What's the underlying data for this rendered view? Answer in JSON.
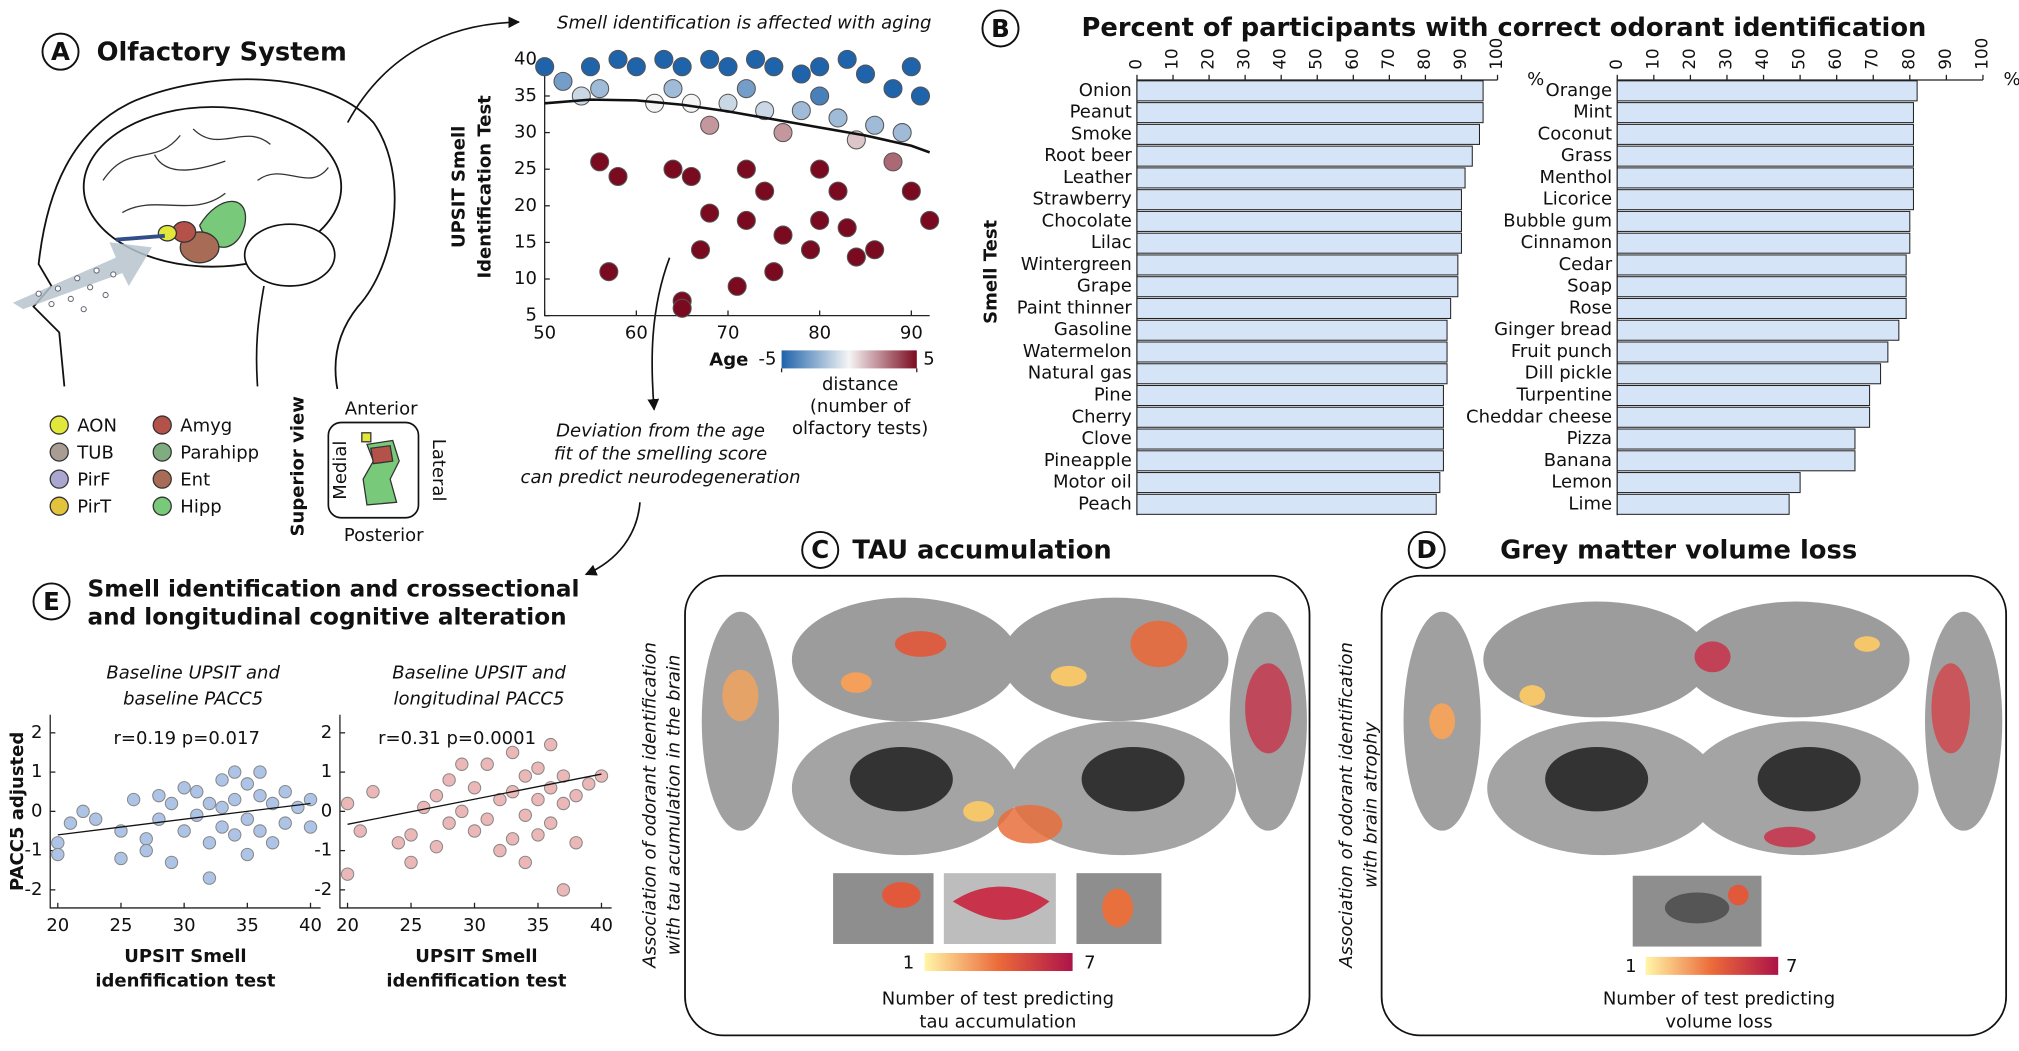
{
  "panels": {
    "A": {
      "letter": "A",
      "title": "Olfactory System",
      "legend": [
        {
          "name": "AON",
          "color": "#e2e83a"
        },
        {
          "name": "TUB",
          "color": "#a99c92"
        },
        {
          "name": "PirF",
          "color": "#a9a7d0"
        },
        {
          "name": "PirT",
          "color": "#e3c33b"
        },
        {
          "name": "Amyg",
          "color": "#b4524a"
        },
        {
          "name": "Parahipp",
          "color": "#80ad7f"
        },
        {
          "name": "Ent",
          "color": "#a76b56"
        },
        {
          "name": "Hipp",
          "color": "#79c97b"
        }
      ],
      "superior_view": {
        "title": "Superior view",
        "anterior": "Anterior",
        "posterior": "Posterior",
        "medial": "Medial",
        "lateral": "Lateral"
      }
    },
    "B": {
      "letter": "B"
    },
    "C": {
      "letter": "C",
      "title": "TAU accumulation",
      "side_label": [
        "Association of odorant identification",
        "with tau acumulation in the brain"
      ],
      "colorbar": {
        "min": 1,
        "max": 7,
        "label": [
          "Number of test predicting",
          "tau accumulation"
        ]
      }
    },
    "D": {
      "letter": "D",
      "title": "Grey matter volume loss",
      "side_label": [
        "Association of odorant identification",
        "with brain atrophy"
      ],
      "colorbar": {
        "min": 1,
        "max": 7,
        "label": [
          "Number of test predicting",
          "volume loss"
        ]
      }
    },
    "E": {
      "letter": "E",
      "title": [
        "Smell identification  and crossectional",
        "and longitudinal cognitive alteration"
      ]
    }
  },
  "chart_data": [
    {
      "type": "scatter",
      "title": "Smell identification is affected with aging",
      "x_label": "Age",
      "y_label": [
        "UPSIT Smell",
        "Identification Test"
      ],
      "annotation": [
        "Deviation from the age",
        "fit of the smelling score",
        "can predict neurodegeneration"
      ],
      "xlim": [
        50,
        92
      ],
      "ylim": [
        5,
        40
      ],
      "xticks": [
        50,
        60,
        70,
        80,
        90
      ],
      "yticks": [
        5,
        10,
        15,
        20,
        25,
        30,
        35,
        40
      ],
      "x": [
        50,
        52,
        55,
        58,
        60,
        63,
        65,
        68,
        70,
        73,
        75,
        78,
        80,
        83,
        85,
        88,
        90,
        91,
        56,
        64,
        72,
        80,
        54,
        62,
        66,
        70,
        74,
        78,
        82,
        86,
        89,
        68,
        76,
        84,
        56,
        64,
        72,
        80,
        88,
        58,
        66,
        74,
        82,
        90,
        92,
        68,
        72,
        76,
        80,
        84,
        86,
        67,
        71,
        75,
        79,
        83,
        57,
        65,
        65
      ],
      "y": [
        39,
        37,
        39,
        40,
        39,
        40,
        39,
        40,
        39,
        40,
        39,
        38,
        39,
        40,
        38,
        36,
        39,
        35,
        36,
        36,
        36,
        35,
        35,
        34,
        34,
        34,
        33,
        33,
        32,
        31,
        30,
        31,
        30,
        29,
        26,
        25,
        25,
        25,
        26,
        24,
        24,
        22,
        22,
        22,
        18,
        19,
        18,
        16,
        18,
        13,
        14,
        14,
        9,
        11,
        14,
        17,
        11,
        7,
        6
      ],
      "distance": [
        -5,
        -3,
        -5,
        -6,
        -5,
        -6,
        -5,
        -7,
        -6,
        -8,
        -7,
        -7,
        -8,
        -10,
        -8,
        -7,
        -11,
        -7,
        -2,
        -2,
        -3,
        -4,
        -1,
        0,
        0,
        -1,
        -1,
        -2,
        -2,
        -2,
        -2,
        2,
        2,
        1,
        8,
        9,
        8,
        6,
        3,
        10,
        10,
        10,
        9,
        6,
        9,
        14,
        15,
        16,
        13,
        17,
        15,
        20,
        24,
        21,
        17,
        13,
        23,
        27,
        28
      ],
      "fit": {
        "x": [
          50,
          55,
          60,
          65,
          70,
          75,
          80,
          85,
          90,
          92
        ],
        "y": [
          34,
          34.5,
          34.4,
          33.8,
          32.9,
          31.8,
          30.7,
          29.6,
          28.2,
          27.3
        ]
      },
      "colorbar": {
        "clim": [
          -5,
          5
        ],
        "ticks": [
          -5,
          5
        ],
        "colormap": [
          "#1f63ab",
          "#f5f5f5",
          "#7a0a1f"
        ],
        "label": [
          "distance",
          "(number of",
          "olfactory tests)"
        ]
      }
    },
    {
      "type": "bar",
      "orientation": "horizontal",
      "title": "Percent of participants with correct odorant identification",
      "y_label": "Smell Test",
      "x_label": "%",
      "color": "#d6e4f8",
      "xlim": [
        0,
        100
      ],
      "xticks": [
        0,
        10,
        20,
        30,
        40,
        50,
        60,
        70,
        80,
        90,
        100
      ],
      "categories": [
        "Onion",
        "Peanut",
        "Smoke",
        "Root beer",
        "Leather",
        "Strawberry",
        "Chocolate",
        "Lilac",
        "Wintergreen",
        "Grape",
        "Paint thinner",
        "Gasoline",
        "Watermelon",
        "Natural gas",
        "Pine",
        "Cherry",
        "Clove",
        "Pineapple",
        "Motor oil",
        "Peach"
      ],
      "values": [
        96,
        96,
        95,
        93,
        91,
        90,
        90,
        90,
        89,
        89,
        87,
        86,
        86,
        86,
        85,
        85,
        85,
        85,
        84,
        83
      ]
    },
    {
      "type": "bar",
      "orientation": "horizontal",
      "x_label": "%",
      "color": "#d6e4f8",
      "xlim": [
        0,
        100
      ],
      "xticks": [
        0,
        10,
        20,
        30,
        40,
        50,
        60,
        70,
        80,
        90,
        100
      ],
      "categories": [
        "Orange",
        "Mint",
        "Coconut",
        "Grass",
        "Menthol",
        "Licorice",
        "Bubble gum",
        "Cinnamon",
        "Cedar",
        "Soap",
        "Rose",
        "Ginger bread",
        "Fruit punch",
        "Dill pickle",
        "Turpentine",
        "Cheddar cheese",
        "Pizza",
        "Banana",
        "Lemon",
        "Lime"
      ],
      "values": [
        82,
        81,
        81,
        81,
        81,
        81,
        80,
        80,
        79,
        79,
        79,
        77,
        74,
        72,
        69,
        69,
        65,
        65,
        50,
        47
      ]
    },
    {
      "type": "scatter",
      "subtitle": [
        "Baseline UPSIT and",
        "baseline PACC5"
      ],
      "annotation": "r=0.19  p=0.017",
      "x_label": [
        "UPSIT Smell",
        "idenfification test"
      ],
      "y_label": "PACC5 adjusted",
      "color": "#aec4e6",
      "xlim": [
        19.4,
        40.8
      ],
      "ylim": [
        -2.46,
        2.46
      ],
      "xticks": [
        20,
        25,
        30,
        35,
        40
      ],
      "yticks": [
        -2,
        -1,
        0,
        1,
        2
      ],
      "x": [
        20,
        20,
        21,
        22,
        23,
        25,
        25,
        26,
        27,
        27,
        28,
        28,
        29,
        29,
        30,
        30,
        31,
        31,
        32,
        32,
        32,
        33,
        33,
        33,
        34,
        34,
        34,
        35,
        35,
        35,
        36,
        36,
        36,
        37,
        37,
        38,
        38,
        39,
        40,
        40
      ],
      "y": [
        -0.8,
        -1.1,
        -0.3,
        0,
        -0.2,
        -0.5,
        -1.2,
        0.3,
        -0.7,
        -1,
        -0.2,
        0.4,
        -1.3,
        0.2,
        0.6,
        -0.5,
        -0.1,
        0.5,
        -0.8,
        0.2,
        -1.7,
        0.8,
        -0.4,
        0.1,
        1,
        -0.6,
        0.3,
        -0.2,
        0.7,
        -1.1,
        0.4,
        -0.5,
        1,
        0.2,
        -0.8,
        0.5,
        -0.3,
        0.1,
        0.3,
        -0.4
      ],
      "fit": {
        "x": [
          20,
          40
        ],
        "y": [
          -0.6,
          0.2
        ]
      }
    },
    {
      "type": "scatter",
      "subtitle": [
        "Baseline UPSIT and",
        "longitudinal PACC5"
      ],
      "annotation": "r=0.31   p=0.0001",
      "x_label": [
        "UPSIT Smell",
        "idenfification test"
      ],
      "color": "#ebb7b7",
      "xlim": [
        19.4,
        40.8
      ],
      "ylim": [
        -2.46,
        2.46
      ],
      "xticks": [
        20,
        25,
        30,
        35,
        40
      ],
      "yticks": [
        -2,
        -1,
        0,
        1,
        2
      ],
      "x": [
        20,
        20,
        21,
        22,
        24,
        25,
        25,
        26,
        27,
        27,
        28,
        28,
        29,
        29,
        30,
        30,
        31,
        31,
        32,
        32,
        33,
        33,
        33,
        34,
        34,
        34,
        35,
        35,
        35,
        36,
        36,
        36,
        37,
        37,
        37,
        38,
        38,
        39,
        40
      ],
      "y": [
        -1.6,
        0.2,
        -0.5,
        0.5,
        -0.8,
        -0.6,
        -1.3,
        0.1,
        0.4,
        -0.9,
        0.8,
        -0.3,
        0,
        1.2,
        -0.5,
        0.6,
        1.2,
        -0.2,
        0.3,
        -1,
        1.5,
        0.5,
        -0.7,
        0.9,
        -0.1,
        -1.3,
        1.1,
        0.3,
        -0.6,
        1.7,
        0.6,
        -0.3,
        0.9,
        -2,
        0.2,
        0.4,
        -0.8,
        0.7,
        0.9
      ],
      "fit": {
        "x": [
          20,
          40
        ],
        "y": [
          -0.33,
          0.95
        ]
      }
    }
  ]
}
